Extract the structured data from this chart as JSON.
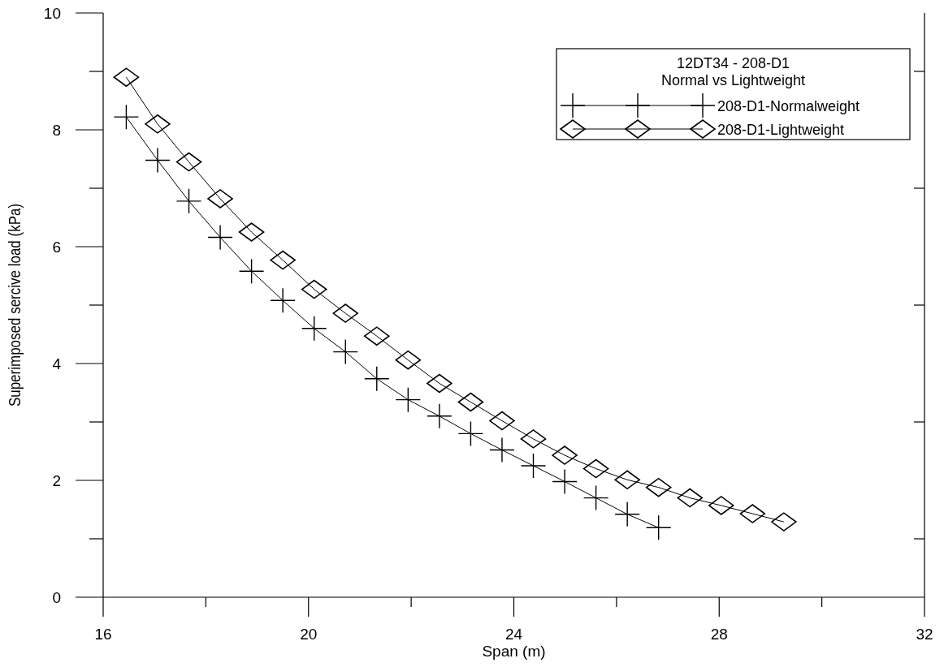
{
  "chart_data": {
    "type": "line",
    "xlabel": "Span (m)",
    "ylabel": "Superimposed sercive load (kPa)",
    "legend_title": "12DT34 - 208-D1\nNormal vs Lightweight",
    "legend": "top right",
    "grid": false,
    "xlim": [
      16,
      32
    ],
    "xticks": [
      16,
      {
        "value": 18,
        "label": null
      },
      20,
      {
        "value": 22,
        "label": null
      },
      24,
      {
        "value": 26,
        "label": null
      },
      28,
      {
        "value": 30,
        "label": null
      },
      32
    ],
    "ylim": [
      0,
      10
    ],
    "yticks": [
      0,
      {
        "value": 1,
        "label": null
      },
      2,
      {
        "value": 3,
        "label": null
      },
      4,
      {
        "value": 5,
        "label": null
      },
      6,
      {
        "value": 7,
        "label": null
      },
      8,
      {
        "value": 9,
        "label": null
      },
      10
    ],
    "series": [
      {
        "name": "208-D1-Normalweight",
        "color": "#000000",
        "marker": "cross",
        "x": [
          16.45,
          17.06,
          17.67,
          18.28,
          18.89,
          19.5,
          20.11,
          20.72,
          21.33,
          21.94,
          22.55,
          23.16,
          23.77,
          24.38,
          24.99,
          25.6,
          26.21,
          26.82
        ],
        "values": [
          8.22,
          7.48,
          6.78,
          6.16,
          5.58,
          5.08,
          4.6,
          4.2,
          3.74,
          3.38,
          3.1,
          2.8,
          2.52,
          2.25,
          1.98,
          1.7,
          1.42,
          1.19
        ]
      },
      {
        "name": "208-D1-Lightweight",
        "color": "#000000",
        "marker": "diamond",
        "x": [
          16.45,
          17.06,
          17.67,
          18.28,
          18.89,
          19.5,
          20.11,
          20.72,
          21.33,
          21.94,
          22.55,
          23.16,
          23.77,
          24.38,
          24.99,
          25.6,
          26.21,
          26.82,
          27.43,
          28.04,
          28.65,
          29.26
        ],
        "values": [
          8.9,
          8.1,
          7.45,
          6.82,
          6.25,
          5.77,
          5.27,
          4.86,
          4.47,
          4.06,
          3.66,
          3.34,
          3.02,
          2.71,
          2.43,
          2.2,
          2.01,
          1.88,
          1.7,
          1.57,
          1.43,
          1.29
        ]
      }
    ]
  }
}
